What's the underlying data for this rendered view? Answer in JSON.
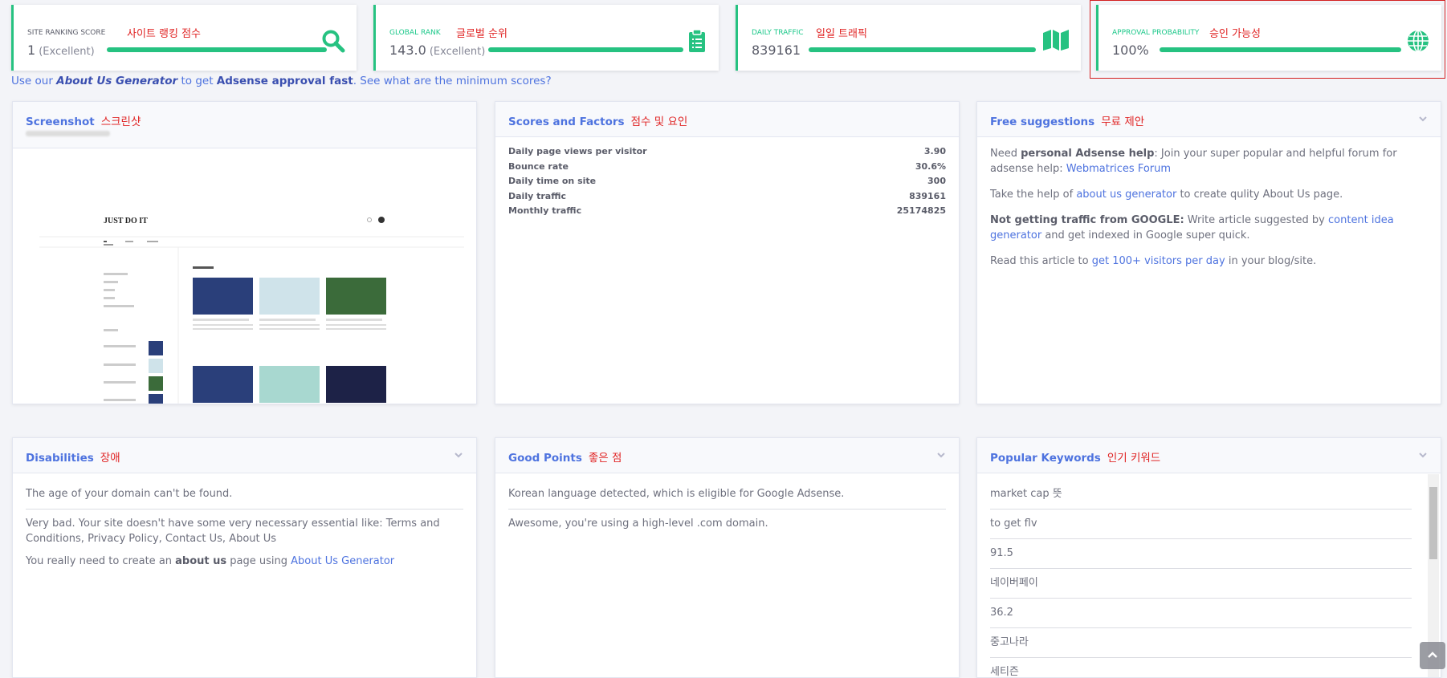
{
  "stats": [
    {
      "label": "SITE RANKING SCORE",
      "label_ko": "사이트 랭킹 점수",
      "value": "1",
      "note": "(Excellent)"
    },
    {
      "label": "GLOBAL RANK",
      "label_ko": "글로벌 순위",
      "value": "143.0",
      "note": "(Excellent)"
    },
    {
      "label": "DAILY TRAFFIC",
      "label_ko": "일일 트래픽",
      "value": "839161"
    },
    {
      "label": "APPROVAL PROBABILITY",
      "label_ko": "승인 가능성",
      "value": "100%"
    }
  ],
  "promo": [
    "Use our ",
    "About Us Generator",
    " to get ",
    "Adsense approval fast",
    ".  ",
    "See what are the minimum scores?"
  ],
  "screenshot": {
    "title": "Screenshot",
    "title_ko": "스크린샷",
    "site_heading": "JUST DO IT"
  },
  "scores": {
    "title": "Scores and Factors",
    "title_ko": "점수 및 요인",
    "rows": [
      [
        "Daily page views per visitor",
        "3.90"
      ],
      [
        "Bounce rate",
        "30.6%"
      ],
      [
        "Daily time on site",
        "300"
      ],
      [
        "Daily traffic",
        "839161"
      ],
      [
        "Monthly traffic",
        "25174825"
      ]
    ]
  },
  "suggestions": {
    "title": "Free suggestions",
    "title_ko": "무료 제안",
    "paragraphs": [
      [
        "Need ",
        "personal Adsense help",
        ": Join your super popular and helpful forum for adsense help: ",
        "Webmatrices Forum"
      ],
      [
        "Take the help of ",
        "about us generator",
        " to create qulity About Us page."
      ],
      [
        "Not getting traffic from GOOGLE:",
        " Write article suggested by ",
        "content idea generator",
        " and get indexed in Google super quick."
      ],
      [
        "Read this article to ",
        "get 100+ visitors per day",
        " in your blog/site."
      ]
    ]
  },
  "disabilities": {
    "title": "Disabilities",
    "title_ko": "장애",
    "items": [
      [
        "The age of your domain can't be found."
      ],
      [
        "Very bad. Your site doesn't have some very necessary essential like: Terms and Conditions, Privacy Policy, Contact Us, About Us"
      ],
      [
        "You really need to create an ",
        "about us",
        " page using ",
        "About Us Generator"
      ]
    ]
  },
  "good_points": {
    "title": "Good Points",
    "title_ko": "좋은 점",
    "items": [
      "Korean language detected, which is eligible for Google Adsense.",
      "Awesome, you're using a high-level .com domain."
    ]
  },
  "keywords": {
    "title": "Popular Keywords",
    "title_ko": "인기 키워드",
    "items": [
      "market cap 뜻",
      "to get flv",
      "91.5",
      "네이버페이",
      "36.2",
      "중고나라",
      "세티즌"
    ]
  }
}
